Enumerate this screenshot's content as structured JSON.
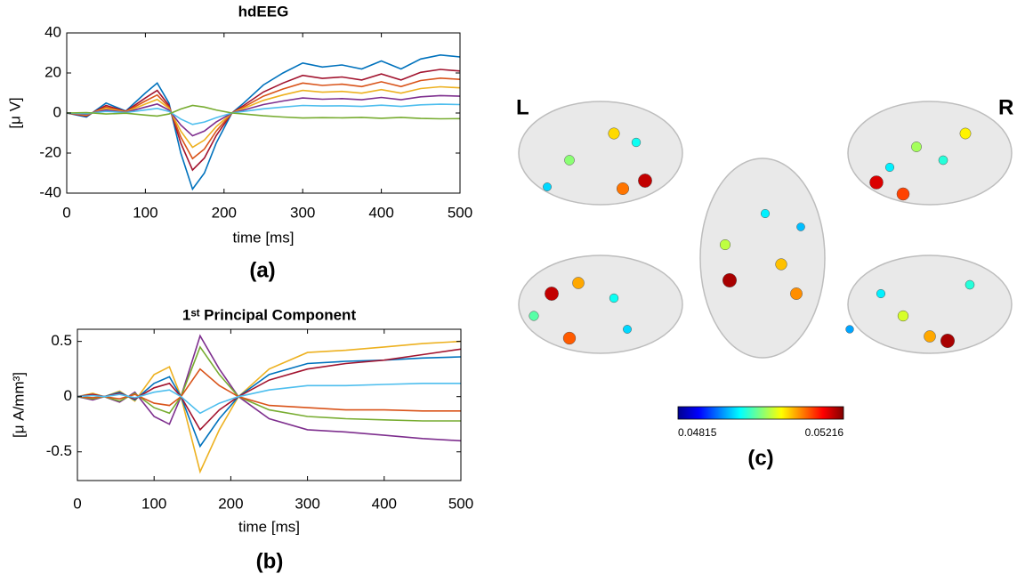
{
  "chart_data": [
    {
      "type": "line",
      "title": "hdEEG",
      "xlabel": "time [ms]",
      "ylabel": "[μ V]",
      "panel_label": "(a)",
      "x": [
        0,
        25,
        50,
        75,
        100,
        115,
        130,
        145,
        160,
        175,
        190,
        210,
        225,
        250,
        275,
        300,
        325,
        350,
        375,
        400,
        425,
        450,
        475,
        500
      ],
      "xlim": [
        0,
        500
      ],
      "xticks": [
        0,
        100,
        200,
        300,
        400,
        500
      ],
      "ylim": [
        -40,
        40
      ],
      "yticks": [
        -40,
        -20,
        0,
        20,
        40
      ],
      "series": [
        {
          "color": "#0072bd",
          "values": [
            0,
            -2,
            5,
            1,
            10,
            15,
            5,
            -20,
            -38,
            -30,
            -15,
            0,
            5,
            14,
            20,
            25,
            23,
            24,
            22,
            26,
            22,
            27,
            29,
            28
          ]
        },
        {
          "color": "#a2142f",
          "values": [
            0,
            -1.5,
            3.8,
            0.8,
            7.5,
            11.3,
            3.8,
            -15,
            -28.5,
            -22.5,
            -11.3,
            0,
            3.8,
            10.5,
            15,
            18.8,
            17.3,
            18,
            16.5,
            19.5,
            16.5,
            20.3,
            21.8,
            21
          ]
        },
        {
          "color": "#d95319",
          "values": [
            0,
            -1.2,
            3,
            0.6,
            6,
            9,
            3,
            -12,
            -22.8,
            -18,
            -9,
            0,
            3,
            8.4,
            12,
            15,
            13.8,
            14.4,
            13.2,
            15.6,
            13.2,
            16.2,
            17.4,
            16.8
          ]
        },
        {
          "color": "#edb120",
          "values": [
            0,
            -0.9,
            2.3,
            0.5,
            4.5,
            6.8,
            2.3,
            -9,
            -17.1,
            -13.5,
            -6.8,
            0,
            2.3,
            6.3,
            9,
            11.3,
            10.4,
            10.8,
            9.9,
            11.7,
            9.9,
            12.2,
            13.1,
            12.6
          ]
        },
        {
          "color": "#7e2f8e",
          "values": [
            0,
            -0.6,
            1.5,
            0.3,
            3,
            4.5,
            1.5,
            -6,
            -11.4,
            -9,
            -4.5,
            0,
            1.5,
            4.2,
            6,
            7.5,
            6.9,
            7.2,
            6.6,
            7.8,
            6.6,
            8.1,
            8.7,
            8.4
          ]
        },
        {
          "color": "#4dbeee",
          "values": [
            0,
            -0.3,
            0.8,
            0.2,
            1.5,
            2.3,
            0.8,
            -3,
            -5.7,
            -4.5,
            -2.3,
            0,
            0.8,
            2.1,
            3,
            3.8,
            3.5,
            3.6,
            3.3,
            3.9,
            3.3,
            4.1,
            4.4,
            4.2
          ]
        },
        {
          "color": "#77ac30",
          "values": [
            0,
            0.2,
            -0.5,
            -0.1,
            -1,
            -1.5,
            -0.5,
            2,
            3.8,
            3,
            1.5,
            0,
            -0.5,
            -1.4,
            -2,
            -2.5,
            -2.3,
            -2.4,
            -2.2,
            -2.6,
            -2.2,
            -2.7,
            -2.9,
            -2.8
          ]
        }
      ]
    },
    {
      "type": "line",
      "title": "1ˢᵗ Principal Component",
      "xlabel": "time [ms]",
      "ylabel": "[μ A/mm³]",
      "panel_label": "(b)",
      "x": [
        0,
        20,
        35,
        55,
        75,
        100,
        120,
        135,
        160,
        185,
        210,
        250,
        300,
        350,
        400,
        450,
        500
      ],
      "xlim": [
        0,
        500
      ],
      "xticks": [
        0,
        100,
        200,
        300,
        400,
        500
      ],
      "ylim": [
        -0.76,
        0.61
      ],
      "yticks": [
        -0.5,
        0,
        0.5
      ],
      "series": [
        {
          "color": "#edb120",
          "values": [
            0,
            0.03,
            0,
            0.05,
            -0.04,
            0.2,
            0.27,
            0,
            -0.68,
            -0.3,
            0,
            0.25,
            0.4,
            0.42,
            0.45,
            0.48,
            0.5
          ]
        },
        {
          "color": "#7e2f8e",
          "values": [
            0,
            -0.03,
            0,
            -0.05,
            0.04,
            -0.18,
            -0.25,
            0,
            0.55,
            0.25,
            0,
            -0.2,
            -0.3,
            -0.32,
            -0.35,
            -0.38,
            -0.4
          ]
        },
        {
          "color": "#0072bd",
          "values": [
            0,
            0.02,
            0,
            0.04,
            -0.03,
            0.12,
            0.18,
            0,
            -0.45,
            -0.2,
            0,
            0.2,
            0.3,
            0.32,
            0.33,
            0.35,
            0.36
          ]
        },
        {
          "color": "#77ac30",
          "values": [
            0,
            -0.02,
            0,
            -0.04,
            0.03,
            -0.1,
            -0.15,
            0,
            0.45,
            0.2,
            0,
            -0.12,
            -0.18,
            -0.2,
            -0.21,
            -0.22,
            -0.22
          ]
        },
        {
          "color": "#a2142f",
          "values": [
            0,
            0.02,
            0,
            0.03,
            -0.02,
            0.08,
            0.12,
            0,
            -0.3,
            -0.12,
            0,
            0.15,
            0.25,
            0.3,
            0.33,
            0.38,
            0.43
          ]
        },
        {
          "color": "#d95319",
          "values": [
            0,
            -0.01,
            0,
            -0.02,
            0.02,
            -0.06,
            -0.08,
            0,
            0.25,
            0.1,
            0,
            -0.08,
            -0.1,
            -0.12,
            -0.12,
            -0.13,
            -0.13
          ]
        },
        {
          "color": "#4dbeee",
          "values": [
            0,
            0.01,
            0,
            0.02,
            -0.01,
            0.04,
            0.06,
            0,
            -0.15,
            -0.06,
            0,
            0.06,
            0.1,
            0.1,
            0.11,
            0.12,
            0.12
          ]
        }
      ]
    }
  ],
  "brain_panel": {
    "panel_label": "(c)",
    "left_label": "L",
    "right_label": "R",
    "colorbar": {
      "min": 0.04815,
      "max": 0.05216
    },
    "node_values": [
      0.0495,
      0.0502,
      0.0508,
      0.0497,
      0.0512,
      0.0519,
      0.0496,
      0.0518,
      0.0503,
      0.0514,
      0.0498,
      0.0507,
      0.05,
      0.0519,
      0.051,
      0.0497,
      0.0513,
      0.0495,
      0.0504,
      0.052,
      0.0496,
      0.0509,
      0.0511,
      0.0494,
      0.0496,
      0.051,
      0.052,
      0.0505,
      0.0498,
      0.0493
    ]
  }
}
